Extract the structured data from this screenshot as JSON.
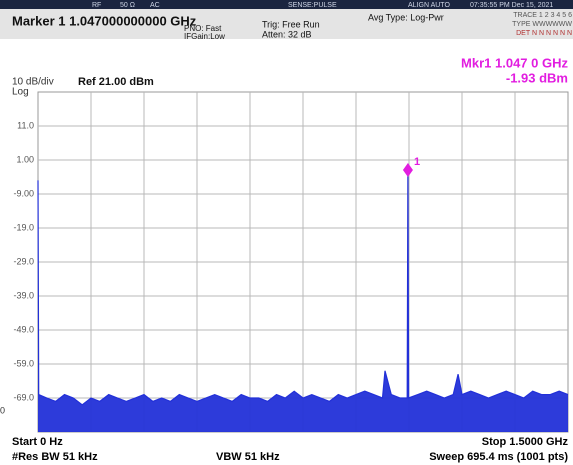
{
  "header": {
    "status": [
      "RF",
      "50 Ω",
      "AC",
      "SENSE:PULSE",
      "ALIGN AUTO",
      "07:35:55 PM Dec 15, 2021"
    ],
    "marker_title": "Marker 1 1.047000000000 GHz",
    "pno": "PNO: Fast",
    "ifgain": "IFGain:Low",
    "trig": "Trig: Free Run",
    "atten": "Atten: 32 dB",
    "avg_type": "Avg Type: Log-Pwr",
    "trace_row": "TRACE 1 2 3 4 5 6",
    "type_row": "TYPE WWWWWW",
    "det_row": "DET N N N N N N"
  },
  "chart_data": {
    "type": "line",
    "scale_label": "10 dB/div",
    "ref_label": "Ref 21.00 dBm",
    "scale_type": "Log",
    "marker_freq": "Mkr1 1.047 0 GHz",
    "marker_level": "-1.93 dBm",
    "marker": {
      "x": 1.047,
      "y": -1.93,
      "label": "1",
      "color": "#e21de0"
    },
    "edge_label": "0",
    "xlim": [
      0,
      1.5
    ],
    "ylim": [
      -79,
      21
    ],
    "yticks": [
      {
        "value": 11,
        "label": "11.0"
      },
      {
        "value": 1,
        "label": "1.00"
      },
      {
        "value": -9,
        "label": "-9.00"
      },
      {
        "value": -19,
        "label": "-19.0"
      },
      {
        "value": -29,
        "label": "-29.0"
      },
      {
        "value": -39,
        "label": "-39.0"
      },
      {
        "value": -49,
        "label": "-49.0"
      },
      {
        "value": -59,
        "label": "-59.0"
      },
      {
        "value": -69,
        "label": "-69.0"
      }
    ],
    "grid": true,
    "series": [
      {
        "color": "#2230d8",
        "x": [
          0,
          0.002,
          0.025,
          0.05,
          0.075,
          0.1,
          0.125,
          0.15,
          0.175,
          0.2,
          0.225,
          0.25,
          0.275,
          0.3,
          0.325,
          0.35,
          0.375,
          0.4,
          0.425,
          0.45,
          0.475,
          0.5,
          0.525,
          0.55,
          0.575,
          0.6,
          0.625,
          0.65,
          0.675,
          0.7,
          0.725,
          0.75,
          0.775,
          0.8,
          0.825,
          0.85,
          0.875,
          0.9,
          0.925,
          0.95,
          0.975,
          0.982,
          1.0,
          1.025,
          1.045,
          1.047,
          1.049,
          1.075,
          1.1,
          1.125,
          1.15,
          1.175,
          1.189,
          1.2,
          1.225,
          1.25,
          1.275,
          1.3,
          1.325,
          1.35,
          1.375,
          1.4,
          1.425,
          1.45,
          1.475,
          1.5
        ],
        "values": [
          -5,
          -68,
          -69,
          -70,
          -68,
          -69,
          -71,
          -69,
          -70,
          -68,
          -69,
          -70,
          -69,
          -68,
          -70,
          -69,
          -70,
          -68,
          -69,
          -70,
          -69,
          -68,
          -69,
          -70,
          -68,
          -69,
          -69,
          -70,
          -68,
          -69,
          -67,
          -69,
          -68,
          -69,
          -70,
          -68,
          -69,
          -68,
          -67,
          -68,
          -69,
          -61,
          -68,
          -69,
          -69,
          -1.93,
          -69,
          -68,
          -67,
          -68,
          -69,
          -68,
          -62,
          -68,
          -67,
          -68,
          -69,
          -68,
          -67,
          -68,
          -69,
          -67,
          -68,
          -68,
          -67,
          -68
        ]
      }
    ],
    "footer": {
      "start": "Start 0 Hz",
      "stop": "Stop 1.5000 GHz",
      "rbw": "#Res BW 51 kHz",
      "vbw": "VBW 51 kHz",
      "sweep": "Sweep  695.4 ms (1001 pts)"
    }
  }
}
